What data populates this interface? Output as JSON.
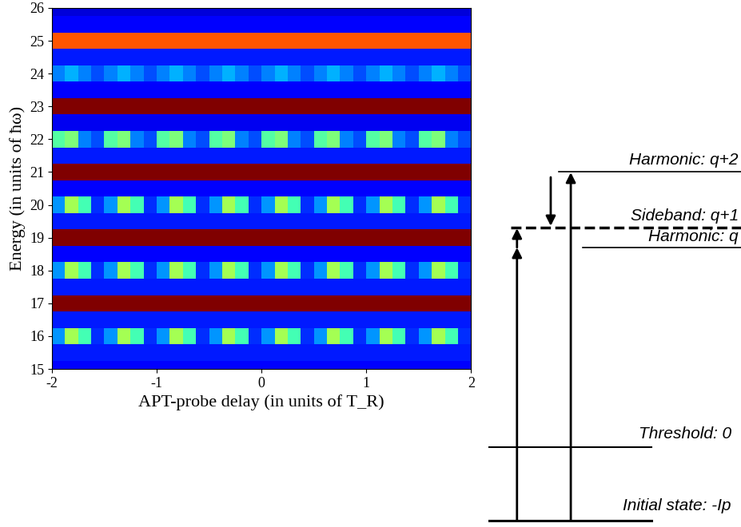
{
  "chart_data": {
    "type": "heatmap",
    "x_label": "APT-probe delay (in units of T_R)",
    "y_label": "Energy (in units of ħω)",
    "xlim": [
      -2,
      2
    ],
    "ylim": [
      15,
      26
    ],
    "xticks": [
      -2,
      -1,
      0,
      1,
      2
    ],
    "yticks": [
      15,
      16,
      17,
      18,
      19,
      20,
      21,
      22,
      23,
      24,
      25,
      26
    ],
    "color": "jet",
    "value_range": [
      0,
      1
    ],
    "x_edges": [
      -2,
      -1.875,
      -1.75,
      -1.625,
      -1.5,
      -1.375,
      -1.25,
      -1.125,
      -1,
      -0.875,
      -0.75,
      -0.625,
      -0.5,
      -0.375,
      -0.25,
      -0.125,
      0,
      0.125,
      0.25,
      0.375,
      0.5,
      0.625,
      0.75,
      0.875,
      1,
      1.125,
      1.25,
      1.375,
      1.5,
      1.625,
      1.75,
      1.875,
      2
    ],
    "y_edges": [
      15,
      15.25,
      15.75,
      16.25,
      16.75,
      17.25,
      17.75,
      18.25,
      18.75,
      19.25,
      19.75,
      20.25,
      20.75,
      21.25,
      21.75,
      22.25,
      22.75,
      23.25,
      23.75,
      24.25,
      24.75,
      25.25,
      25.75,
      26
    ],
    "cells": [
      [
        0.12,
        0.12,
        0.12,
        0.12,
        0.12,
        0.12,
        0.12,
        0.12,
        0.12,
        0.12,
        0.12,
        0.12,
        0.12,
        0.12,
        0.12,
        0.12,
        0.12,
        0.12,
        0.12,
        0.12,
        0.12,
        0.12,
        0.12,
        0.12,
        0.12,
        0.12,
        0.12,
        0.12,
        0.12,
        0.12,
        0.12,
        0.12
      ],
      [
        0.15,
        0.15,
        0.15,
        0.15,
        0.15,
        0.15,
        0.15,
        0.15,
        0.15,
        0.15,
        0.15,
        0.15,
        0.15,
        0.15,
        0.15,
        0.15,
        0.15,
        0.15,
        0.15,
        0.15,
        0.15,
        0.15,
        0.15,
        0.15,
        0.15,
        0.15,
        0.15,
        0.15,
        0.15,
        0.15,
        0.15,
        0.15
      ],
      [
        0.27,
        0.55,
        0.43,
        0.17,
        0.27,
        0.55,
        0.43,
        0.17,
        0.27,
        0.55,
        0.43,
        0.17,
        0.27,
        0.55,
        0.43,
        0.17,
        0.27,
        0.55,
        0.43,
        0.17,
        0.27,
        0.55,
        0.43,
        0.17,
        0.27,
        0.55,
        0.43,
        0.17,
        0.27,
        0.55,
        0.43,
        0.17
      ],
      [
        0.15,
        0.15,
        0.15,
        0.15,
        0.15,
        0.15,
        0.15,
        0.15,
        0.15,
        0.15,
        0.15,
        0.15,
        0.15,
        0.15,
        0.15,
        0.15,
        0.15,
        0.15,
        0.15,
        0.15,
        0.15,
        0.15,
        0.15,
        0.15,
        0.15,
        0.15,
        0.15,
        0.15,
        0.15,
        0.15,
        0.15,
        0.15
      ],
      [
        1,
        1,
        1,
        1,
        1,
        1,
        1,
        1,
        1,
        1,
        1,
        1,
        1,
        1,
        1,
        1,
        1,
        1,
        1,
        1,
        1,
        1,
        1,
        1,
        1,
        1,
        1,
        1,
        1,
        1,
        1,
        1
      ],
      [
        0.15,
        0.15,
        0.15,
        0.15,
        0.15,
        0.15,
        0.15,
        0.15,
        0.15,
        0.15,
        0.15,
        0.15,
        0.15,
        0.15,
        0.15,
        0.15,
        0.15,
        0.15,
        0.15,
        0.15,
        0.15,
        0.15,
        0.15,
        0.15,
        0.15,
        0.15,
        0.15,
        0.15,
        0.15,
        0.15,
        0.15,
        0.15
      ],
      [
        0.27,
        0.55,
        0.43,
        0.17,
        0.27,
        0.55,
        0.43,
        0.17,
        0.27,
        0.55,
        0.43,
        0.17,
        0.27,
        0.55,
        0.43,
        0.17,
        0.27,
        0.55,
        0.43,
        0.17,
        0.27,
        0.55,
        0.43,
        0.17,
        0.27,
        0.55,
        0.43,
        0.17,
        0.27,
        0.55,
        0.43,
        0.17
      ],
      [
        0.12,
        0.12,
        0.12,
        0.12,
        0.12,
        0.12,
        0.12,
        0.12,
        0.12,
        0.12,
        0.12,
        0.12,
        0.12,
        0.12,
        0.12,
        0.12,
        0.12,
        0.12,
        0.12,
        0.12,
        0.12,
        0.12,
        0.12,
        0.12,
        0.12,
        0.12,
        0.12,
        0.12,
        0.12,
        0.12,
        0.12,
        0.12
      ],
      [
        1,
        1,
        1,
        1,
        1,
        1,
        1,
        1,
        1,
        1,
        1,
        1,
        1,
        1,
        1,
        1,
        1,
        1,
        1,
        1,
        1,
        1,
        1,
        1,
        1,
        1,
        1,
        1,
        1,
        1,
        1,
        1
      ],
      [
        0.15,
        0.15,
        0.15,
        0.15,
        0.15,
        0.15,
        0.15,
        0.15,
        0.15,
        0.15,
        0.15,
        0.15,
        0.15,
        0.15,
        0.15,
        0.15,
        0.15,
        0.15,
        0.15,
        0.15,
        0.15,
        0.15,
        0.15,
        0.15,
        0.15,
        0.15,
        0.15,
        0.15,
        0.15,
        0.15,
        0.15,
        0.15
      ],
      [
        0.27,
        0.55,
        0.43,
        0.17,
        0.27,
        0.55,
        0.43,
        0.17,
        0.27,
        0.55,
        0.43,
        0.17,
        0.27,
        0.55,
        0.43,
        0.17,
        0.27,
        0.55,
        0.43,
        0.17,
        0.27,
        0.55,
        0.43,
        0.17,
        0.27,
        0.55,
        0.43,
        0.17,
        0.27,
        0.55,
        0.43,
        0.17
      ],
      [
        0.12,
        0.12,
        0.12,
        0.12,
        0.12,
        0.12,
        0.12,
        0.12,
        0.12,
        0.12,
        0.12,
        0.12,
        0.12,
        0.12,
        0.12,
        0.12,
        0.12,
        0.12,
        0.12,
        0.12,
        0.12,
        0.12,
        0.12,
        0.12,
        0.12,
        0.12,
        0.12,
        0.12,
        0.12,
        0.12,
        0.12,
        0.12
      ],
      [
        1,
        1,
        1,
        1,
        1,
        1,
        1,
        1,
        1,
        1,
        1,
        1,
        1,
        1,
        1,
        1,
        1,
        1,
        1,
        1,
        1,
        1,
        1,
        1,
        1,
        1,
        1,
        1,
        1,
        1,
        1,
        1
      ],
      [
        0.15,
        0.15,
        0.15,
        0.15,
        0.15,
        0.15,
        0.15,
        0.15,
        0.15,
        0.15,
        0.15,
        0.15,
        0.15,
        0.15,
        0.15,
        0.15,
        0.15,
        0.15,
        0.15,
        0.15,
        0.15,
        0.15,
        0.15,
        0.15,
        0.15,
        0.15,
        0.15,
        0.15,
        0.15,
        0.15,
        0.15,
        0.15
      ],
      [
        0.45,
        0.5,
        0.25,
        0.2,
        0.45,
        0.5,
        0.25,
        0.2,
        0.45,
        0.5,
        0.25,
        0.2,
        0.45,
        0.5,
        0.25,
        0.2,
        0.45,
        0.5,
        0.25,
        0.2,
        0.45,
        0.5,
        0.25,
        0.2,
        0.45,
        0.5,
        0.25,
        0.2,
        0.45,
        0.5,
        0.25,
        0.2
      ],
      [
        0.1,
        0.1,
        0.1,
        0.1,
        0.1,
        0.1,
        0.1,
        0.1,
        0.1,
        0.1,
        0.1,
        0.1,
        0.1,
        0.1,
        0.1,
        0.1,
        0.1,
        0.1,
        0.1,
        0.1,
        0.1,
        0.1,
        0.1,
        0.1,
        0.1,
        0.1,
        0.1,
        0.1,
        0.1,
        0.1,
        0.1,
        0.1
      ],
      [
        1,
        1,
        1,
        1,
        1,
        1,
        1,
        1,
        1,
        1,
        1,
        1,
        1,
        1,
        1,
        1,
        1,
        1,
        1,
        1,
        1,
        1,
        1,
        1,
        1,
        1,
        1,
        1,
        1,
        1,
        1,
        1
      ],
      [
        0.12,
        0.12,
        0.12,
        0.12,
        0.12,
        0.12,
        0.12,
        0.12,
        0.12,
        0.12,
        0.12,
        0.12,
        0.12,
        0.12,
        0.12,
        0.12,
        0.12,
        0.12,
        0.12,
        0.12,
        0.12,
        0.12,
        0.12,
        0.12,
        0.12,
        0.12,
        0.12,
        0.12,
        0.12,
        0.12,
        0.12,
        0.12
      ],
      [
        0.25,
        0.3,
        0.25,
        0.2,
        0.25,
        0.3,
        0.25,
        0.2,
        0.25,
        0.3,
        0.25,
        0.2,
        0.25,
        0.3,
        0.25,
        0.2,
        0.25,
        0.3,
        0.25,
        0.2,
        0.25,
        0.3,
        0.25,
        0.2,
        0.25,
        0.3,
        0.25,
        0.2,
        0.25,
        0.3,
        0.25,
        0.2
      ],
      [
        0.15,
        0.15,
        0.15,
        0.15,
        0.15,
        0.15,
        0.15,
        0.15,
        0.15,
        0.15,
        0.15,
        0.15,
        0.15,
        0.15,
        0.15,
        0.15,
        0.15,
        0.15,
        0.15,
        0.15,
        0.15,
        0.15,
        0.15,
        0.15,
        0.15,
        0.15,
        0.15,
        0.15,
        0.15,
        0.15,
        0.15,
        0.15
      ],
      [
        0.82,
        0.82,
        0.82,
        0.82,
        0.82,
        0.82,
        0.82,
        0.82,
        0.82,
        0.82,
        0.82,
        0.82,
        0.82,
        0.82,
        0.82,
        0.82,
        0.82,
        0.82,
        0.82,
        0.82,
        0.82,
        0.82,
        0.82,
        0.82,
        0.82,
        0.82,
        0.82,
        0.82,
        0.82,
        0.82,
        0.82,
        0.82
      ],
      [
        0.12,
        0.12,
        0.12,
        0.12,
        0.12,
        0.12,
        0.12,
        0.12,
        0.12,
        0.12,
        0.12,
        0.12,
        0.12,
        0.12,
        0.12,
        0.12,
        0.12,
        0.12,
        0.12,
        0.12,
        0.12,
        0.12,
        0.12,
        0.12,
        0.12,
        0.12,
        0.12,
        0.12,
        0.12,
        0.12,
        0.12,
        0.12
      ],
      [
        0.08,
        0.08,
        0.08,
        0.08,
        0.08,
        0.08,
        0.08,
        0.08,
        0.08,
        0.08,
        0.08,
        0.08,
        0.08,
        0.08,
        0.08,
        0.08,
        0.08,
        0.08,
        0.08,
        0.08,
        0.08,
        0.08,
        0.08,
        0.08,
        0.08,
        0.08,
        0.08,
        0.08,
        0.08,
        0.08,
        0.08,
        0.08
      ]
    ]
  },
  "diagram": {
    "levels": [
      {
        "label": "Harmonic: q+2"
      },
      {
        "label": "Sideband: q+1"
      },
      {
        "label": "Harmonic: q"
      },
      {
        "label": "Threshold: 0"
      },
      {
        "label": "Initial state: -Ip"
      }
    ]
  }
}
